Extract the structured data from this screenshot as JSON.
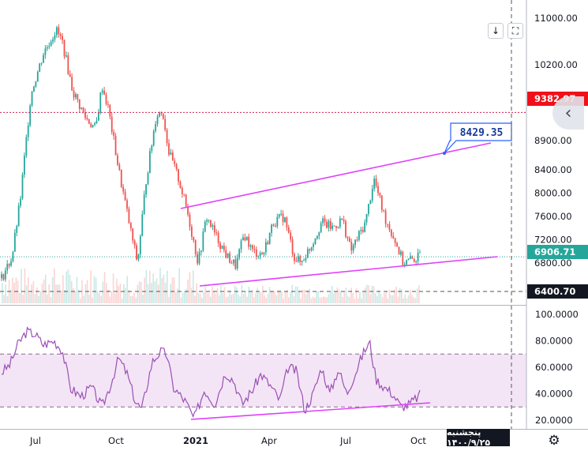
{
  "chart_data": {
    "type": "line",
    "title": "",
    "price_axis": {
      "ticks": [
        {
          "value": 11000,
          "label": "11000.00"
        },
        {
          "value": 10200,
          "label": "10200.00"
        },
        {
          "value": 8900,
          "label": "8900.00"
        },
        {
          "value": 8400,
          "label": "8400.00"
        },
        {
          "value": 8000,
          "label": "8000.00"
        },
        {
          "value": 7600,
          "label": "7600.00"
        },
        {
          "value": 7200,
          "label": "7200.00"
        },
        {
          "value": 6800,
          "label": "6800.00"
        }
      ],
      "badges": [
        {
          "value": 9382.97,
          "label": "9382.97",
          "color": "#f0101a"
        },
        {
          "value": 6906.71,
          "label": "6906.71",
          "color": "#26a69a"
        },
        {
          "value": 6400.7,
          "label": "6400.70",
          "color": "#131722"
        }
      ]
    },
    "rsi_axis": {
      "ticks": [
        {
          "value": 100,
          "label": "100.0000"
        },
        {
          "value": 80,
          "label": "80.0000"
        },
        {
          "value": 60,
          "label": "60.0000"
        },
        {
          "value": 40,
          "label": "40.0000"
        },
        {
          "value": 20,
          "label": "20.0000"
        }
      ],
      "band": [
        30,
        70
      ]
    },
    "x_ticks": [
      "Jul",
      "Oct",
      "2021",
      "Apr",
      "Jul",
      "Oct"
    ],
    "annotations": [
      {
        "label": "8429.35",
        "color": "#2962ff"
      }
    ],
    "price_series": [
      {
        "t": 0,
        "v": 6540
      },
      {
        "t": 0.025,
        "v": 6900
      },
      {
        "t": 0.045,
        "v": 7900
      },
      {
        "t": 0.07,
        "v": 9700
      },
      {
        "t": 0.1,
        "v": 10400
      },
      {
        "t": 0.13,
        "v": 10800
      },
      {
        "t": 0.145,
        "v": 10600
      },
      {
        "t": 0.17,
        "v": 9750
      },
      {
        "t": 0.2,
        "v": 9300
      },
      {
        "t": 0.225,
        "v": 9100
      },
      {
        "t": 0.24,
        "v": 9850
      },
      {
        "t": 0.255,
        "v": 9450
      },
      {
        "t": 0.28,
        "v": 8400
      },
      {
        "t": 0.31,
        "v": 7300
      },
      {
        "t": 0.325,
        "v": 6800
      },
      {
        "t": 0.345,
        "v": 8200
      },
      {
        "t": 0.37,
        "v": 9350
      },
      {
        "t": 0.385,
        "v": 9400
      },
      {
        "t": 0.4,
        "v": 8700
      },
      {
        "t": 0.425,
        "v": 8200
      },
      {
        "t": 0.445,
        "v": 7650
      },
      {
        "t": 0.47,
        "v": 6800
      },
      {
        "t": 0.49,
        "v": 7600
      },
      {
        "t": 0.51,
        "v": 7300
      },
      {
        "t": 0.54,
        "v": 6900
      },
      {
        "t": 0.56,
        "v": 6750
      },
      {
        "t": 0.58,
        "v": 7300
      },
      {
        "t": 0.6,
        "v": 7000
      },
      {
        "t": 0.625,
        "v": 6950
      },
      {
        "t": 0.65,
        "v": 7500
      },
      {
        "t": 0.675,
        "v": 7600
      },
      {
        "t": 0.7,
        "v": 6900
      },
      {
        "t": 0.715,
        "v": 6800
      },
      {
        "t": 0.74,
        "v": 7100
      },
      {
        "t": 0.765,
        "v": 7500
      },
      {
        "t": 0.79,
        "v": 7400
      },
      {
        "t": 0.815,
        "v": 7550
      },
      {
        "t": 0.835,
        "v": 7000
      },
      {
        "t": 0.87,
        "v": 7500
      },
      {
        "t": 0.89,
        "v": 8250
      },
      {
        "t": 0.915,
        "v": 7600
      },
      {
        "t": 0.94,
        "v": 7200
      },
      {
        "t": 0.96,
        "v": 6800
      },
      {
        "t": 0.985,
        "v": 6870
      },
      {
        "t": 1.0,
        "v": 6906
      }
    ],
    "rsi_series": [
      {
        "t": 0,
        "v": 56
      },
      {
        "t": 0.02,
        "v": 62
      },
      {
        "t": 0.04,
        "v": 78
      },
      {
        "t": 0.06,
        "v": 87
      },
      {
        "t": 0.08,
        "v": 85
      },
      {
        "t": 0.1,
        "v": 77
      },
      {
        "t": 0.125,
        "v": 80
      },
      {
        "t": 0.145,
        "v": 73
      },
      {
        "t": 0.165,
        "v": 44
      },
      {
        "t": 0.19,
        "v": 38
      },
      {
        "t": 0.215,
        "v": 45
      },
      {
        "t": 0.24,
        "v": 30
      },
      {
        "t": 0.26,
        "v": 46
      },
      {
        "t": 0.28,
        "v": 67
      },
      {
        "t": 0.3,
        "v": 55
      },
      {
        "t": 0.32,
        "v": 34
      },
      {
        "t": 0.335,
        "v": 28
      },
      {
        "t": 0.36,
        "v": 64
      },
      {
        "t": 0.38,
        "v": 72
      },
      {
        "t": 0.395,
        "v": 70
      },
      {
        "t": 0.41,
        "v": 45
      },
      {
        "t": 0.44,
        "v": 34
      },
      {
        "t": 0.46,
        "v": 21
      },
      {
        "t": 0.485,
        "v": 43
      },
      {
        "t": 0.51,
        "v": 32
      },
      {
        "t": 0.535,
        "v": 56
      },
      {
        "t": 0.555,
        "v": 50
      },
      {
        "t": 0.575,
        "v": 32
      },
      {
        "t": 0.6,
        "v": 43
      },
      {
        "t": 0.62,
        "v": 55
      },
      {
        "t": 0.645,
        "v": 45
      },
      {
        "t": 0.665,
        "v": 35
      },
      {
        "t": 0.685,
        "v": 60
      },
      {
        "t": 0.705,
        "v": 57
      },
      {
        "t": 0.725,
        "v": 27
      },
      {
        "t": 0.745,
        "v": 40
      },
      {
        "t": 0.765,
        "v": 60
      },
      {
        "t": 0.785,
        "v": 40
      },
      {
        "t": 0.805,
        "v": 59
      },
      {
        "t": 0.825,
        "v": 40
      },
      {
        "t": 0.845,
        "v": 55
      },
      {
        "t": 0.865,
        "v": 71
      },
      {
        "t": 0.88,
        "v": 79
      },
      {
        "t": 0.895,
        "v": 51
      },
      {
        "t": 0.915,
        "v": 45
      },
      {
        "t": 0.935,
        "v": 40
      },
      {
        "t": 0.955,
        "v": 30
      },
      {
        "t": 0.975,
        "v": 32
      },
      {
        "t": 1.0,
        "v": 39
      }
    ]
  },
  "toolbar": {
    "scroll_down_icon": "↓",
    "fullscreen_icon": "⛶"
  },
  "footer": {
    "date_label": "پنجشنبه ۱۴۰۰/۹/۲۵",
    "settings_icon": "⚙"
  },
  "side_button": {
    "icon": "‹"
  },
  "colors": {
    "up": "#26a69a",
    "down": "#ef5350",
    "price_line": "#d11f4f",
    "trend": "#e040fb",
    "rsi": "#9c4fb7",
    "rsi_band": "#f3e5f5"
  }
}
